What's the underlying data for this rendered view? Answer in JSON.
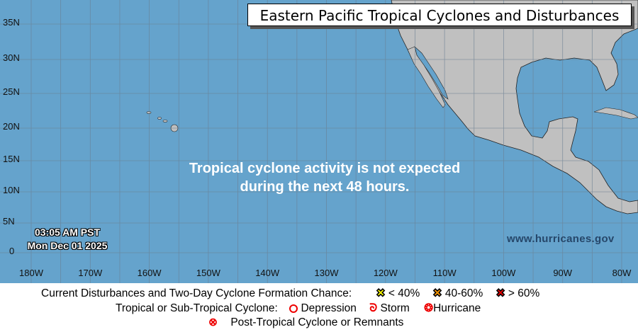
{
  "title": "Eastern Pacific Tropical Cyclones and Disturbances",
  "message": {
    "line1": "Tropical cyclone activity is not expected",
    "line2": "during the next 48 hours."
  },
  "timestamp": {
    "time": "03:05 AM PST",
    "date": "Mon Dec 01 2025"
  },
  "website": "www.hurricanes.gov",
  "latitude_labels": [
    "35N",
    "30N",
    "25N",
    "20N",
    "15N",
    "10N",
    "5N",
    "0"
  ],
  "longitude_labels": [
    "180W",
    "170W",
    "160W",
    "150W",
    "140W",
    "130W",
    "120W",
    "110W",
    "100W",
    "90W",
    "80W"
  ],
  "colors": {
    "water": "#65a3cc",
    "land": "#c0c0c0",
    "low_chance": "#ffff00",
    "medium_chance": "#ff9900",
    "high_chance": "#ee0000",
    "cyclone": "#ee0000"
  },
  "legend": {
    "disturbances_label": "Current Disturbances and Two-Day Cyclone Formation Chance:",
    "low": "< 40%",
    "medium": "40-60%",
    "high": "> 60%",
    "cyclone_label": "Tropical or Sub-Tropical Cyclone:",
    "depression": "Depression",
    "storm": "Storm",
    "hurricane": "Hurricane",
    "post_tropical": "Post-Tropical Cyclone or Remnants"
  }
}
